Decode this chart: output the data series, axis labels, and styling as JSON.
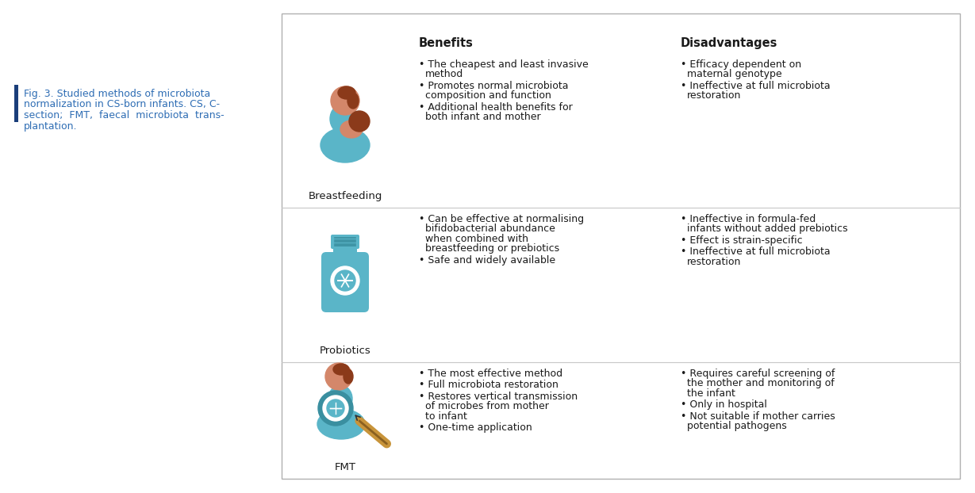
{
  "fig_caption_lines": [
    "Fig. 3. Studied methods of microbiota",
    "normalization in CS-born infants. CS, C-",
    "section;  FMT,  faecal  microbiota  trans-",
    "plantation."
  ],
  "caption_color": "#2e6db4",
  "bar_color": "#1a3e7a",
  "box_border": "#b0b0b0",
  "header_benefits": "Benefits",
  "header_disadvantages": "Disadvantages",
  "rows": [
    {
      "label": "Breastfeeding",
      "benefits": [
        "The cheapest and least invasive\nmethod",
        "Promotes normal microbiota\ncomposition and function",
        "Additional health benefits for\nboth infant and mother"
      ],
      "disadvantages": [
        "Efficacy dependent on\nmaternal genotype",
        "Ineffective at full microbiota\nrestoration"
      ]
    },
    {
      "label": "Probiotics",
      "benefits": [
        "Can be effective at normalising\nbifidobacterial abundance\nwhen combined with\nbreastfeeding or prebiotics",
        "Safe and widely available"
      ],
      "disadvantages": [
        "Ineffective in formula-fed\ninfants without added prebiotics",
        "Effect is strain-specific",
        "Ineffective at full microbiota\nrestoration"
      ]
    },
    {
      "label": "FMT",
      "benefits": [
        "The most effective method",
        "Full microbiota restoration",
        "Restores vertical transmission\nof microbes from mother\nto infant",
        "One-time application"
      ],
      "disadvantages": [
        "Requires careful screening of\nthe mother and monitoring of\nthe infant",
        "Only in hospital",
        "Not suitable if mother carries\npotential pathogens"
      ]
    }
  ],
  "text_color": "#1a1a1a",
  "header_fontsize": 10.5,
  "body_fontsize": 9.0,
  "label_fontsize": 9.5,
  "caption_fontsize": 9.0,
  "icon_color": "#5ab5c8",
  "skin_color": "#d4876a",
  "hair_color": "#8b3a1a",
  "dark_teal": "#3a8fa0",
  "tube_color": "#c8943a"
}
